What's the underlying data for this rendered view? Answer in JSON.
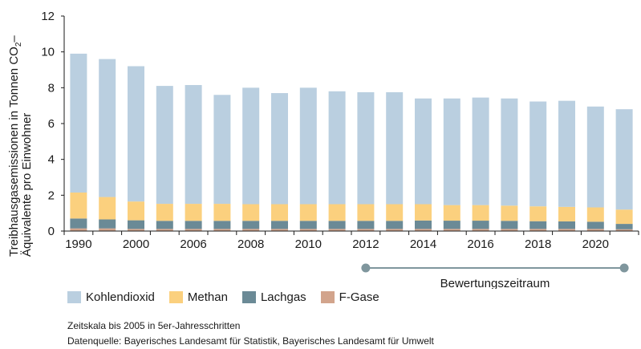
{
  "chart_data": {
    "type": "bar",
    "stacked": true,
    "ylabel_line1": "Treibhausgasemissionen in Tonnen CO",
    "ylabel_sub": "2",
    "ylabel_dash": "–",
    "ylabel_line2": "Äquivalente pro Einwohner",
    "ylim": [
      0,
      12
    ],
    "yticks": [
      "0",
      "2",
      "4",
      "6",
      "8",
      "10",
      "12"
    ],
    "grid": false,
    "legend_position": "bottom-left",
    "categories": [
      "1990",
      "1995",
      "2000",
      "2005",
      "2006",
      "2007",
      "2008",
      "2009",
      "2010",
      "2011",
      "2012",
      "2013",
      "2014",
      "2015",
      "2016",
      "2017",
      "2018",
      "2019",
      "2020",
      "2021"
    ],
    "xtick_labels": [
      "1990",
      "2000",
      "2006",
      "2008",
      "2010",
      "2012",
      "2014",
      "2016",
      "2018",
      "2020"
    ],
    "xtick_label_indices": [
      0,
      2,
      4,
      6,
      8,
      10,
      12,
      14,
      16,
      18
    ],
    "series": [
      {
        "name": "F-Gase",
        "color": "#d2a48c",
        "values": [
          0.15,
          0.15,
          0.12,
          0.12,
          0.12,
          0.12,
          0.12,
          0.12,
          0.12,
          0.12,
          0.12,
          0.12,
          0.12,
          0.12,
          0.12,
          0.12,
          0.12,
          0.12,
          0.12,
          0.1
        ]
      },
      {
        "name": "Lachgas",
        "color": "#6b8a96",
        "values": [
          0.55,
          0.5,
          0.48,
          0.45,
          0.45,
          0.45,
          0.45,
          0.45,
          0.45,
          0.45,
          0.45,
          0.45,
          0.47,
          0.46,
          0.46,
          0.45,
          0.43,
          0.42,
          0.4,
          0.3
        ]
      },
      {
        "name": "Methan",
        "color": "#fbd07e",
        "values": [
          1.45,
          1.25,
          1.05,
          0.95,
          0.95,
          0.95,
          0.93,
          0.93,
          0.93,
          0.93,
          0.93,
          0.93,
          0.91,
          0.87,
          0.87,
          0.85,
          0.83,
          0.81,
          0.8,
          0.8
        ]
      },
      {
        "name": "Kohlendioxid",
        "color": "#bacfe0",
        "values": [
          7.75,
          7.7,
          7.55,
          6.58,
          6.63,
          6.08,
          6.5,
          6.2,
          6.5,
          6.3,
          6.25,
          6.25,
          5.9,
          5.95,
          6.0,
          5.98,
          5.85,
          5.92,
          5.63,
          5.6
        ]
      }
    ],
    "legend": [
      {
        "name": "Kohlendioxid",
        "color": "#bacfe0"
      },
      {
        "name": "Methan",
        "color": "#fbd07e"
      },
      {
        "name": "Lachgas",
        "color": "#6b8a96"
      },
      {
        "name": "F-Gase",
        "color": "#d2a48c"
      }
    ],
    "annotation": {
      "label": "Bewertungszeitraum",
      "start_category": "2012",
      "end_category": "2021",
      "color": "#7f969d"
    }
  },
  "notes": {
    "line1": "Zeitskala bis 2005 in 5er-Jahresschritten",
    "line2": "Datenquelle: Bayerisches Landesamt für Statistik, Bayerisches Landesamt für Umwelt"
  }
}
